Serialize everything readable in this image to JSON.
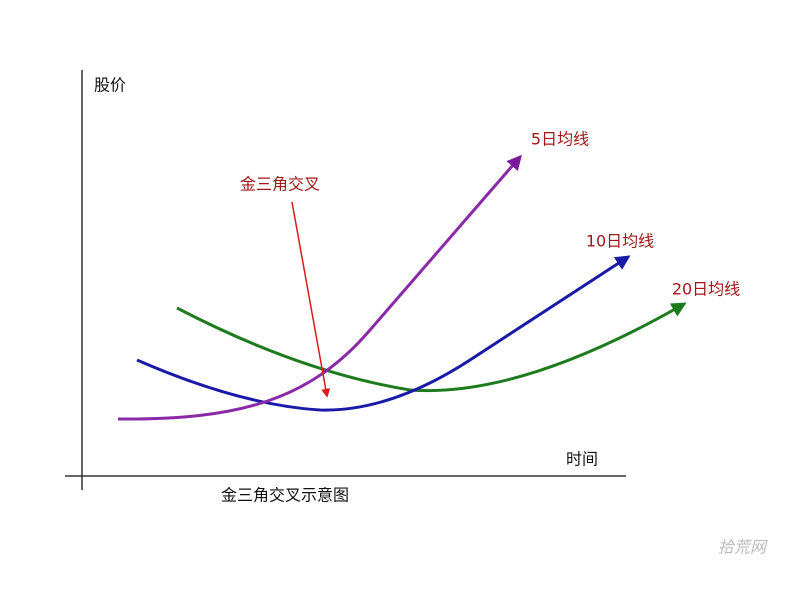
{
  "axes": {
    "y_label": "股价",
    "x_label": "时间"
  },
  "annotation": "金三角交叉",
  "lines": [
    {
      "label": "5日均线"
    },
    {
      "label": "10日均线"
    },
    {
      "label": "20日均线"
    }
  ],
  "caption": "金三角交叉示意图",
  "watermark": "拾荒网"
}
